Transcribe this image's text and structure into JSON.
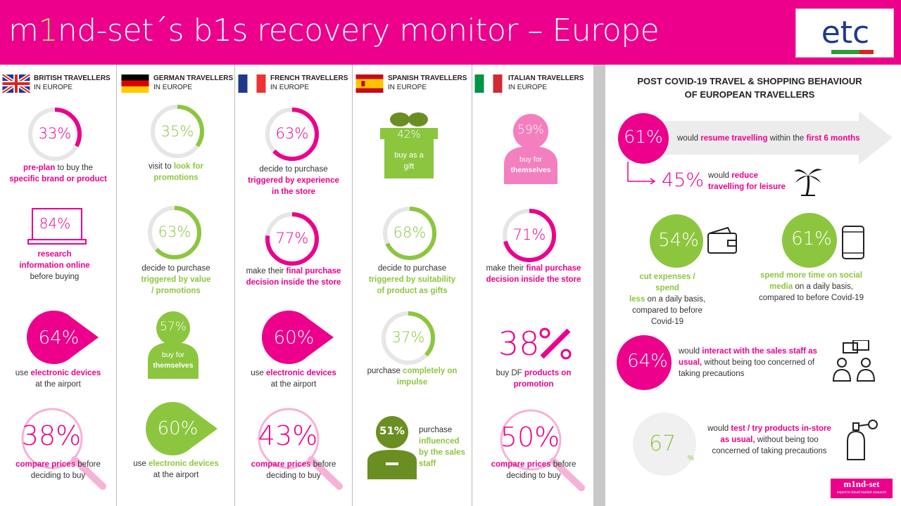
{
  "header": {
    "title_pre": "m",
    "title_one": "1",
    "title_post": "nd-set´s b1s recovery monitor – Europe"
  },
  "logo": {
    "text": "etc"
  },
  "colors": {
    "pink": "#ec008c",
    "green": "#8cc63f",
    "light_pink": "#f47fbf"
  },
  "columns": [
    {
      "name": "BRITISH TRAVELLERS",
      "sub": "IN EUROPE"
    },
    {
      "name": "GERMAN TRAVELLERS",
      "sub": "IN EUROPE"
    },
    {
      "name": "FRENCH TRAVELLERS",
      "sub": "IN EUROPE"
    },
    {
      "name": "SPANISH TRAVELLERS",
      "sub": "IN EUROPE"
    },
    {
      "name": "ITALIAN TRAVELLERS",
      "sub": "IN EUROPE"
    }
  ],
  "british": {
    "s1": {
      "value": "33%",
      "t1": "pre-plan",
      "t2": " to buy the",
      "t3": "specific brand or product"
    },
    "s2": {
      "value": "84%",
      "t1": "research",
      "t2": "information online",
      "t3": "before buying"
    },
    "s3": {
      "value": "64%",
      "t1": "use ",
      "t2": "electronic devices",
      "t3": "at the airport"
    },
    "s4": {
      "value": "38%",
      "t1": "compare prices",
      "t2": " before",
      "t3": "deciding to buy"
    }
  },
  "german": {
    "s1": {
      "value": "35%",
      "t1": "visit to ",
      "t2": "look for",
      "t3": "promotions"
    },
    "s2": {
      "value": "63%",
      "t1": "decide to purchase",
      "t2": "triggered by value",
      "t3": "/ promotions"
    },
    "s3": {
      "value": "57%",
      "t1": "buy for",
      "t2": "themselves"
    },
    "s4": {
      "value": "60%",
      "t1": "use ",
      "t2": "electronic devices",
      "t3": "at the airport"
    }
  },
  "french": {
    "s1": {
      "value": "63%",
      "t1": "decide to purchase",
      "t2": "triggered by experience",
      "t3": "in the store"
    },
    "s2": {
      "value": "77%",
      "t1": "make their ",
      "t2": "final purchase",
      "t3": "decision inside the store"
    },
    "s3": {
      "value": "60%",
      "t1": "use ",
      "t2": "electronic devices",
      "t3": "at the airport"
    },
    "s4": {
      "value": "43%",
      "t1": "compare prices",
      "t2": " before",
      "t3": "deciding to buy"
    }
  },
  "spanish": {
    "s1": {
      "value": "42%",
      "t1": "buy as a",
      "t2": "gift"
    },
    "s2": {
      "value": "68%",
      "t1": "decide to purchase",
      "t2": "triggered by suitability",
      "t3": "of product as gifts"
    },
    "s3": {
      "value": "37%",
      "t1": "purchase ",
      "t2": "completely on",
      "t3": "impulse"
    },
    "s4": {
      "value": "51%",
      "t1": "purchase",
      "t2": "influenced",
      "t3": "by the sales",
      "t4": "staff"
    }
  },
  "italian": {
    "s1": {
      "value": "59%",
      "t1": "buy for",
      "t2": "themselves"
    },
    "s2": {
      "value": "71%",
      "t1": "make their ",
      "t2": "final purchase",
      "t3": "decision inside the store"
    },
    "s3": {
      "value": "38",
      "t1": "buy DF ",
      "t2": "products on",
      "t3": "promotion"
    },
    "s4": {
      "value": "50%",
      "t1": "compare prices",
      "t2": " before",
      "t3": "deciding to buy"
    }
  },
  "right": {
    "title1": "POST COVID-19 TRAVEL & SHOPPING BEHAVIOUR",
    "title2": "OF EUROPEAN TRAVELLERS",
    "a": {
      "value": "61%",
      "t1": "would ",
      "t2": "resume travelling",
      "t3": " within the ",
      "t4": "first 6 months"
    },
    "b": {
      "value": "45%",
      "t1": "would ",
      "t2": "reduce",
      "t3": "travelling for leisure"
    },
    "c": {
      "value": "54%",
      "t1": "cut expenses / spend",
      "t2": "less",
      "t3": " on a  daily basis,",
      "t4": "compared to before",
      "t5": "Covid-19"
    },
    "d": {
      "value": "61%",
      "t1": "spend more time on social",
      "t2": "media",
      "t3": " on a daily basis,",
      "t4": "compared to before  Covid-19"
    },
    "e": {
      "value": "64%",
      "t1": "would ",
      "t2": "interact with the sales staff as",
      "t3": "usual,",
      "t4": " without being too concerned of",
      "t5": "taking precautions"
    },
    "f": {
      "value": "67",
      "pct": "%",
      "t1": "would ",
      "t2": "test / try products in-store",
      "t3": "as usual,",
      "t4": " without being too",
      "t5": "concerned of taking precautions"
    },
    "footer_logo": "m1nd-set",
    "footer_sub": "expert in travel market research"
  },
  "progress": {
    "british_s1": 0.33,
    "german_s1": 0.35,
    "french_s1": 0.63,
    "german_s2": 0.63,
    "french_s2": 0.77,
    "spanish_s2": 0.68,
    "italian_s2": 0.71,
    "spanish_s3": 0.37
  }
}
